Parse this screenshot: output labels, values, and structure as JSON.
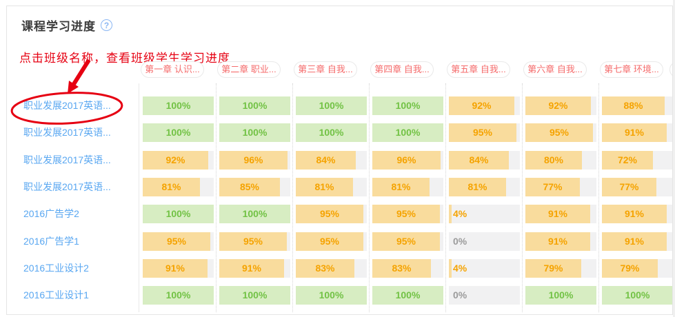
{
  "panel": {
    "title": "课程学习进度",
    "help_icon": "?",
    "annotation_text": "点击班级名称，查看班级学生学习进度"
  },
  "columns": [
    {
      "label": "第一章 认识..."
    },
    {
      "label": "第二章 职业..."
    },
    {
      "label": "第三章 自我..."
    },
    {
      "label": "第四章 自我..."
    },
    {
      "label": "第五章 自我..."
    },
    {
      "label": "第六章 自我..."
    },
    {
      "label": "第七章 环境..."
    },
    {
      "label": "",
      "partial": true
    }
  ],
  "rows": [
    {
      "class_name": "职业发展2017英语...",
      "circled": true,
      "values": [
        100,
        100,
        100,
        100,
        92,
        92,
        88
      ]
    },
    {
      "class_name": "职业发展2017英语...",
      "circled": false,
      "values": [
        100,
        100,
        100,
        100,
        95,
        95,
        91
      ]
    },
    {
      "class_name": "职业发展2017英语...",
      "circled": false,
      "values": [
        92,
        96,
        84,
        96,
        84,
        80,
        72
      ]
    },
    {
      "class_name": "职业发展2017英语...",
      "circled": false,
      "values": [
        81,
        85,
        81,
        81,
        81,
        77,
        77
      ]
    },
    {
      "class_name": "2016广告学2",
      "circled": false,
      "values": [
        100,
        100,
        95,
        95,
        4,
        91,
        91
      ]
    },
    {
      "class_name": "2016广告学1",
      "circled": false,
      "values": [
        95,
        95,
        95,
        95,
        0,
        91,
        91
      ]
    },
    {
      "class_name": "2016工业设计2",
      "circled": false,
      "values": [
        91,
        91,
        83,
        83,
        4,
        79,
        79
      ]
    },
    {
      "class_name": "2016工业设计1",
      "circled": false,
      "values": [
        100,
        100,
        100,
        100,
        0,
        100,
        100
      ]
    }
  ],
  "colors": {
    "green_fill": "#d7edc2",
    "green_text": "#72c245",
    "orange_fill": "#f9dc9d",
    "orange_text": "#f5a300",
    "track_gray": "#f1f1f2",
    "zero_text": "#9b9b9b",
    "link_blue": "#59a7f1",
    "pill_text": "#f56c6c",
    "annotation_red": "#e60012"
  }
}
